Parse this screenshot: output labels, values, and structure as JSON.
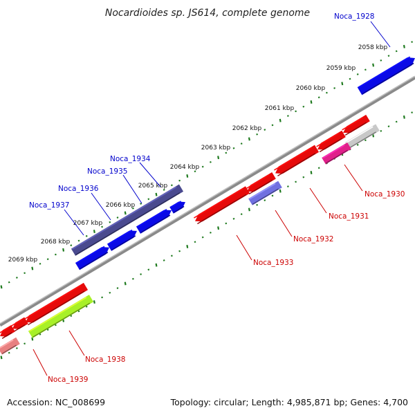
{
  "title": "Nocardioides sp. JS614, complete genome",
  "footer": {
    "accession": "Accession: NC_008699",
    "topology": "Topology: circular; Length: 4,985,871 bp; Genes: 4,700"
  },
  "colors": {
    "backbone": "#8a8a8a",
    "ticks": "#1f7a1f",
    "forward_label": "#0000cc",
    "reverse_label": "#cc0000"
  },
  "kbp_labels": [
    "2058 kbp",
    "2059 kbp",
    "2060 kbp",
    "2061 kbp",
    "2062 kbp",
    "2063 kbp",
    "2064 kbp",
    "2065 kbp",
    "2066 kbp",
    "2067 kbp",
    "2068 kbp",
    "2069 kbp"
  ],
  "genes_forward": [
    {
      "name": "Noca_1928",
      "color": "#0a0ae6"
    },
    {
      "name": "Noca_1934",
      "color": "#4a4a8f"
    },
    {
      "name": "Noca_1935",
      "color": "#0a0ae6"
    },
    {
      "name": "Noca_1936",
      "color": "#0a0ae6"
    },
    {
      "name": "Noca_1937",
      "color": "#0a0ae6"
    }
  ],
  "genes_reverse": [
    {
      "name": "Noca_1930",
      "color": "#e60a0a"
    },
    {
      "name": "Noca_1931",
      "color": "#e60a0a"
    },
    {
      "name": "Noca_1932",
      "color": "#7070e0"
    },
    {
      "name": "Noca_1933",
      "color": "#e60a0a"
    },
    {
      "name": "Noca_1938",
      "color": "#a8f028"
    },
    {
      "name": "Noca_1939",
      "color": "#e60a0a"
    }
  ],
  "unlabeled_features": [
    {
      "color": "#e60a0a"
    },
    {
      "color": "#e60a0a"
    },
    {
      "color": "#e60a0a"
    },
    {
      "color": "#c8c8c8"
    },
    {
      "color": "#e0208a"
    },
    {
      "color": "#e60a0a"
    },
    {
      "color": "#e60a0a"
    },
    {
      "color": "#e88080"
    }
  ]
}
